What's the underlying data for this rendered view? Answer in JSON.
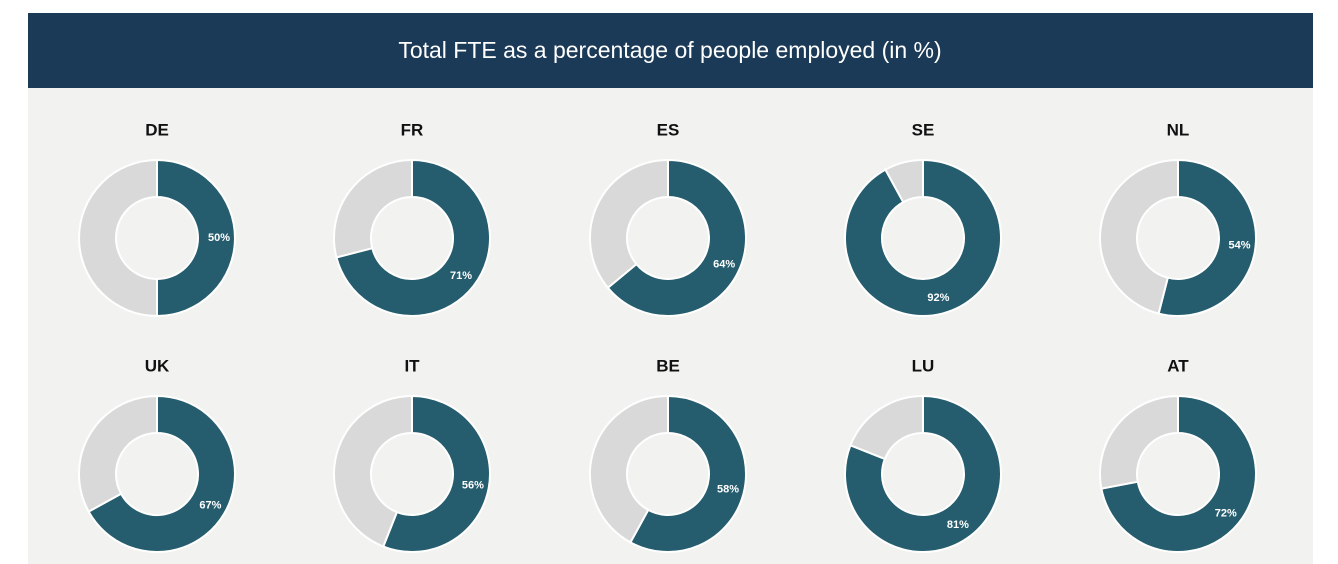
{
  "header": {
    "title": "Total FTE as a percentage of people employed (in %)"
  },
  "chart_data": [
    {
      "type": "pie",
      "title": "DE",
      "values": [
        50,
        50
      ],
      "value_labels": [
        "50%",
        null
      ],
      "colors": [
        "#255d6e",
        "#d9d9d9"
      ]
    },
    {
      "type": "pie",
      "title": "FR",
      "values": [
        71,
        29
      ],
      "value_labels": [
        "71%",
        null
      ],
      "colors": [
        "#255d6e",
        "#d9d9d9"
      ]
    },
    {
      "type": "pie",
      "title": "ES",
      "values": [
        64,
        36
      ],
      "value_labels": [
        "64%",
        null
      ],
      "colors": [
        "#255d6e",
        "#d9d9d9"
      ]
    },
    {
      "type": "pie",
      "title": "SE",
      "values": [
        92,
        8
      ],
      "value_labels": [
        "92%",
        null
      ],
      "colors": [
        "#255d6e",
        "#d9d9d9"
      ]
    },
    {
      "type": "pie",
      "title": "NL",
      "values": [
        54,
        46
      ],
      "value_labels": [
        "54%",
        null
      ],
      "colors": [
        "#255d6e",
        "#d9d9d9"
      ]
    },
    {
      "type": "pie",
      "title": "UK",
      "values": [
        67,
        33
      ],
      "value_labels": [
        "67%",
        null
      ],
      "colors": [
        "#255d6e",
        "#d9d9d9"
      ]
    },
    {
      "type": "pie",
      "title": "IT",
      "values": [
        56,
        44
      ],
      "value_labels": [
        "56%",
        null
      ],
      "colors": [
        "#255d6e",
        "#d9d9d9"
      ]
    },
    {
      "type": "pie",
      "title": "BE",
      "values": [
        58,
        42
      ],
      "value_labels": [
        "58%",
        null
      ],
      "colors": [
        "#255d6e",
        "#d9d9d9"
      ]
    },
    {
      "type": "pie",
      "title": "LU",
      "values": [
        81,
        19
      ],
      "value_labels": [
        "81%",
        null
      ],
      "colors": [
        "#255d6e",
        "#d9d9d9"
      ]
    },
    {
      "type": "pie",
      "title": "AT",
      "values": [
        72,
        28
      ],
      "value_labels": [
        "72%",
        null
      ],
      "colors": [
        "#255d6e",
        "#d9d9d9"
      ]
    }
  ]
}
